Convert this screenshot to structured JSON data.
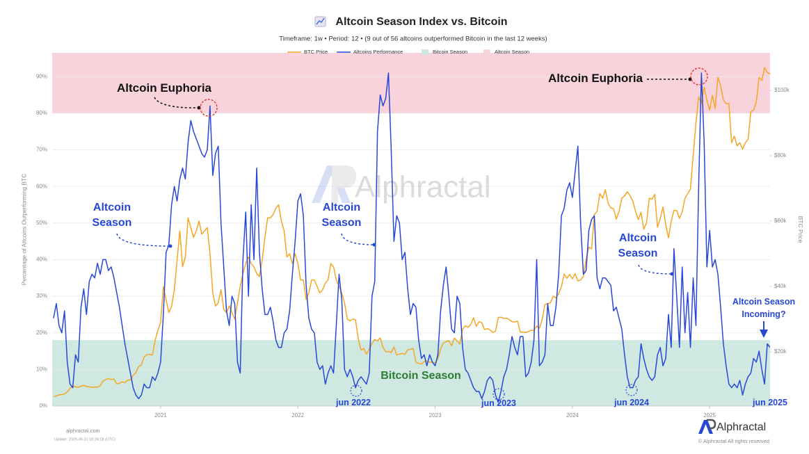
{
  "chart_data": {
    "type": "line",
    "title": "Altcoin Season Index vs. Bitcoin",
    "subtitle": "Timeframe: 1w • Period: 12 • (9 out of 56 altcoins outperformed Bitcoin in the last 12 weeks)",
    "y_label": "Percentage of Altcoins Outperforming BTC",
    "y2_label": "BTC Price",
    "xlim": [
      2020.21,
      2025.44
    ],
    "xticks": [
      2021,
      2022,
      2023,
      2024,
      2025
    ],
    "ylim": [
      0,
      96.5
    ],
    "yticks": [
      {
        "value": 0,
        "label": "0%"
      },
      {
        "value": 10,
        "label": "10%"
      },
      {
        "value": 20,
        "label": "20%"
      },
      {
        "value": 30,
        "label": "30%"
      },
      {
        "value": 40,
        "label": "40%"
      },
      {
        "value": 50,
        "label": "50%"
      },
      {
        "value": 60,
        "label": "60%"
      },
      {
        "value": 70,
        "label": "70%"
      },
      {
        "value": 80,
        "label": "80%"
      },
      {
        "value": 90,
        "label": "90%"
      }
    ],
    "y2lim": [
      3400,
      111500
    ],
    "y2ticks": [
      {
        "value": 20000,
        "label": "$20k"
      },
      {
        "value": 40000,
        "label": "$40k"
      },
      {
        "value": 60000,
        "label": "$60k"
      },
      {
        "value": 80000,
        "label": "$80k"
      },
      {
        "value": 100000,
        "label": "$100k"
      }
    ],
    "grid": true,
    "bands": [
      {
        "name": "Bitcoin Season",
        "range": [
          0,
          18
        ],
        "color": "#cfe9e2"
      },
      {
        "name": "Altcoin Season",
        "range": [
          80,
          100
        ],
        "color": "#f9d3dc"
      }
    ],
    "x": [
      2020.22,
      2020.24,
      2020.26,
      2020.28,
      2020.3,
      2020.32,
      2020.34,
      2020.36,
      2020.38,
      2020.4,
      2020.42,
      2020.44,
      2020.46,
      2020.48,
      2020.5,
      2020.52,
      2020.54,
      2020.56,
      2020.58,
      2020.6,
      2020.62,
      2020.64,
      2020.66,
      2020.68,
      2020.7,
      2020.72,
      2020.74,
      2020.76,
      2020.78,
      2020.8,
      2020.82,
      2020.84,
      2020.86,
      2020.88,
      2020.9,
      2020.92,
      2020.94,
      2020.96,
      2020.98,
      2021.0,
      2021.02,
      2021.04,
      2021.06,
      2021.08,
      2021.1,
      2021.12,
      2021.14,
      2021.16,
      2021.18,
      2021.2,
      2021.22,
      2021.24,
      2021.26,
      2021.28,
      2021.3,
      2021.32,
      2021.34,
      2021.36,
      2021.38,
      2021.4,
      2021.42,
      2021.44,
      2021.46,
      2021.48,
      2021.5,
      2021.52,
      2021.54,
      2021.56,
      2021.58,
      2021.6,
      2021.62,
      2021.64,
      2021.66,
      2021.68,
      2021.7,
      2021.72,
      2021.74,
      2021.76,
      2021.78,
      2021.8,
      2021.82,
      2021.84,
      2021.86,
      2021.88,
      2021.9,
      2021.92,
      2021.94,
      2021.96,
      2021.98,
      2022.0,
      2022.02,
      2022.04,
      2022.06,
      2022.08,
      2022.1,
      2022.12,
      2022.14,
      2022.16,
      2022.18,
      2022.2,
      2022.22,
      2022.24,
      2022.26,
      2022.28,
      2022.3,
      2022.32,
      2022.34,
      2022.36,
      2022.38,
      2022.4,
      2022.42,
      2022.44,
      2022.46,
      2022.48,
      2022.5,
      2022.52,
      2022.54,
      2022.56,
      2022.58,
      2022.6,
      2022.62,
      2022.64,
      2022.66,
      2022.68,
      2022.7,
      2022.72,
      2022.74,
      2022.76,
      2022.78,
      2022.8,
      2022.82,
      2022.84,
      2022.86,
      2022.88,
      2022.9,
      2022.92,
      2022.94,
      2022.96,
      2022.98,
      2023.0,
      2023.02,
      2023.04,
      2023.06,
      2023.08,
      2023.1,
      2023.12,
      2023.14,
      2023.16,
      2023.18,
      2023.2,
      2023.22,
      2023.24,
      2023.26,
      2023.28,
      2023.3,
      2023.32,
      2023.34,
      2023.36,
      2023.38,
      2023.4,
      2023.42,
      2023.44,
      2023.46,
      2023.48,
      2023.5,
      2023.52,
      2023.54,
      2023.56,
      2023.58,
      2023.6,
      2023.62,
      2023.64,
      2023.66,
      2023.68,
      2023.7,
      2023.72,
      2023.74,
      2023.76,
      2023.78,
      2023.8,
      2023.82,
      2023.84,
      2023.86,
      2023.88,
      2023.9,
      2023.92,
      2023.94,
      2023.96,
      2023.98,
      2024.0,
      2024.02,
      2024.04,
      2024.06,
      2024.08,
      2024.1,
      2024.12,
      2024.14,
      2024.16,
      2024.18,
      2024.2,
      2024.22,
      2024.24,
      2024.26,
      2024.28,
      2024.3,
      2024.32,
      2024.34,
      2024.36,
      2024.38,
      2024.4,
      2024.42,
      2024.44,
      2024.46,
      2024.48,
      2024.5,
      2024.52,
      2024.54,
      2024.56,
      2024.58,
      2024.6,
      2024.62,
      2024.64,
      2024.66,
      2024.68,
      2024.7,
      2024.72,
      2024.74,
      2024.76,
      2024.78,
      2024.8,
      2024.82,
      2024.84,
      2024.86,
      2024.88,
      2024.9,
      2024.92,
      2024.94,
      2024.96,
      2024.98,
      2025.0,
      2025.02,
      2025.04,
      2025.06,
      2025.08,
      2025.1,
      2025.12,
      2025.14,
      2025.16,
      2025.18,
      2025.2,
      2025.22,
      2025.24,
      2025.26,
      2025.28,
      2025.3,
      2025.32,
      2025.34,
      2025.36,
      2025.38,
      2025.4,
      2025.42,
      2025.44
    ],
    "series": [
      {
        "name": "BTC Price",
        "color": "#f5a623",
        "axis": "y2",
        "values": [
          6200,
          6500,
          6800,
          6900,
          7100,
          7700,
          8800,
          9500,
          9300,
          9100,
          9500,
          9700,
          9400,
          9300,
          9100,
          9200,
          9200,
          9600,
          11000,
          11500,
          11800,
          11500,
          11700,
          10200,
          10400,
          10800,
          10600,
          11300,
          11400,
          12800,
          13700,
          15500,
          16000,
          18400,
          19100,
          19200,
          19000,
          23500,
          26500,
          29000,
          40000,
          36000,
          32000,
          34000,
          39000,
          48000,
          57000,
          46000,
          49000,
          61000,
          58000,
          55000,
          57000,
          60000,
          56000,
          57000,
          58000,
          50000,
          38000,
          34000,
          35000,
          39000,
          33000,
          32000,
          34000,
          32000,
          30000,
          35000,
          40000,
          44000,
          47000,
          49000,
          47000,
          46000,
          44000,
          43000,
          48000,
          55000,
          61000,
          61000,
          62000,
          64000,
          65000,
          60000,
          57000,
          49000,
          50000,
          47000,
          50000,
          47000,
          42000,
          42000,
          36000,
          38000,
          42000,
          42000,
          40000,
          38000,
          39000,
          41000,
          42000,
          47000,
          46000,
          42000,
          40000,
          38000,
          35000,
          30000,
          29500,
          30000,
          29800,
          24000,
          20500,
          21000,
          19300,
          20800,
          22500,
          23800,
          23300,
          24300,
          21400,
          20000,
          20100,
          19800,
          21500,
          19000,
          19300,
          19500,
          19200,
          20600,
          20800,
          21000,
          16800,
          16500,
          16200,
          17000,
          17200,
          16800,
          16800,
          16600,
          17900,
          20900,
          22700,
          23100,
          23400,
          21800,
          24200,
          23300,
          22400,
          26900,
          28000,
          27500,
          28400,
          30400,
          27800,
          29200,
          28900,
          26800,
          27100,
          26700,
          25900,
          26300,
          30500,
          30600,
          30200,
          30300,
          29900,
          29200,
          29100,
          29400,
          26100,
          26000,
          25900,
          26200,
          26600,
          26500,
          27900,
          27200,
          29900,
          34500,
          34700,
          35000,
          37000,
          36500,
          37800,
          39900,
          43800,
          42500,
          43700,
          42300,
          43900,
          41700,
          42000,
          43000,
          48300,
          52000,
          51500,
          62000,
          63000,
          68400,
          67000,
          69600,
          65500,
          64000,
          63800,
          60600,
          63000,
          67000,
          67700,
          69000,
          67800,
          66200,
          63000,
          60500,
          62700,
          57500,
          59500,
          67000,
          66700,
          68200,
          58100,
          60800,
          64300,
          59000,
          54900,
          60000,
          63300,
          63200,
          60800,
          62800,
          67000,
          68400,
          69800,
          80000,
          90000,
          98000,
          96000,
          101000,
          97000,
          94000,
          98500,
          94500,
          104000,
          101500,
          97000,
          96000,
          96000,
          84000,
          86000,
          83000,
          84000,
          82000,
          84000,
          85000,
          93500,
          94000,
          96500,
          104000,
          103000,
          107000,
          105500,
          105000
        ]
      },
      {
        "name": "Altcoins Performance",
        "color": "#2747d8",
        "values": [
          24,
          28,
          22,
          20,
          26,
          12,
          6,
          5,
          14,
          12,
          27,
          32,
          25,
          34,
          36,
          35,
          39,
          36,
          40,
          40,
          37,
          38,
          35,
          31,
          27,
          22,
          17,
          13,
          9,
          5,
          3,
          2,
          3,
          6,
          5,
          5,
          8,
          7,
          9,
          12,
          25,
          42,
          44,
          55,
          60,
          56,
          62,
          65,
          62,
          72,
          78,
          75,
          73,
          71,
          69,
          68,
          70,
          82,
          63,
          69,
          71,
          50,
          38,
          26,
          22,
          30,
          28,
          12,
          9,
          40,
          53,
          30,
          55,
          40,
          65,
          42,
          32,
          25,
          25,
          27,
          23,
          18,
          16,
          16,
          20,
          21,
          26,
          36,
          45,
          56,
          58,
          52,
          33,
          24,
          21,
          20,
          12,
          10,
          11,
          6,
          9,
          11,
          9,
          22,
          36,
          29,
          10,
          8,
          10,
          8,
          5,
          7,
          8,
          7,
          6,
          9,
          30,
          34,
          75,
          85,
          82,
          84,
          91,
          70,
          45,
          52,
          50,
          40,
          42,
          32,
          25,
          28,
          27,
          18,
          13,
          14,
          11,
          14,
          12,
          11,
          14,
          26,
          33,
          38,
          30,
          21,
          20,
          30,
          28,
          16,
          10,
          9,
          7,
          5,
          4,
          4,
          2,
          4,
          7,
          8,
          7,
          3,
          1,
          4,
          8,
          10,
          14,
          19,
          16,
          14,
          19,
          19,
          8,
          9,
          12,
          18,
          40,
          11,
          12,
          14,
          28,
          22,
          22,
          27,
          36,
          52,
          54,
          59,
          61,
          57,
          64,
          71,
          50,
          36,
          37,
          48,
          51,
          52,
          35,
          32,
          35,
          35,
          34,
          33,
          26,
          27,
          24,
          21,
          14,
          8,
          5,
          5,
          7,
          8,
          17,
          13,
          10,
          8,
          7,
          8,
          14,
          16,
          11,
          13,
          25,
          16,
          43,
          30,
          16,
          38,
          20,
          31,
          16,
          35,
          22,
          60,
          91,
          72,
          38,
          48,
          38,
          40,
          36,
          27,
          17,
          11,
          6,
          5,
          6,
          5,
          7,
          3,
          6,
          8,
          9,
          13,
          12,
          15,
          10,
          6,
          17,
          16
        ]
      }
    ],
    "annotations": [
      "Altcoin Euphoria",
      "Altcoin Euphoria",
      "Altcoin Season",
      "Altcoin Season",
      "Altcoin Season",
      "Altcoin Season Incoming?",
      "Bitcoin Season",
      "jun 2022",
      "jun 2023",
      "jun 2024",
      "jun 2025"
    ]
  },
  "watermark": "Alphractal",
  "logo": "Alphractal",
  "footer": {
    "site": "alphractal.com",
    "update": "Update: 2025-06-11 16:24:18 (UTC)",
    "copyright": "© Alphractal All rights reserved"
  }
}
